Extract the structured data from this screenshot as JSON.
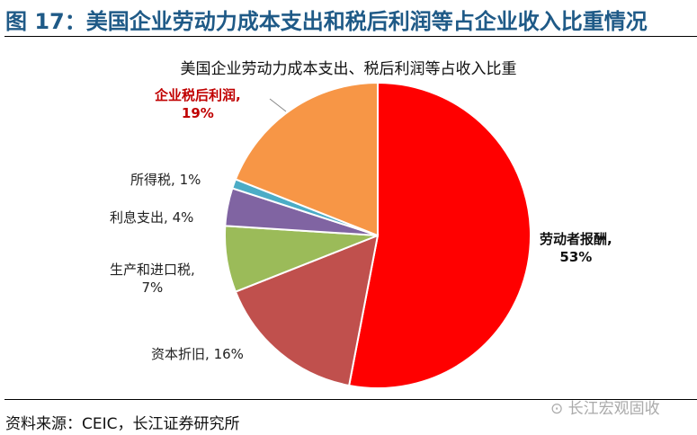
{
  "figure_title": "图 17：美国企业劳动力成本支出和税后利润等占企业收入比重情况",
  "source": "资料来源：CEIC，长江证券研究所",
  "watermark": "长江宏观固收",
  "chart_data": {
    "type": "pie",
    "title": "美国企业劳动力成本支出、税后利润等占收入比重",
    "start": "12 o'clock, clockwise",
    "slices": [
      {
        "name": "劳动者报酬",
        "value": 53,
        "label": "53%",
        "color": "#FF0000"
      },
      {
        "name": "资本折旧",
        "value": 16,
        "label": "16%",
        "color": "#C0504D"
      },
      {
        "name": "生产和进口税",
        "value": 7,
        "label": "7%",
        "color": "#9BBB59"
      },
      {
        "name": "利息支出",
        "value": 4,
        "label": "4%",
        "color": "#8064A2"
      },
      {
        "name": "所得税",
        "value": 1,
        "label": "1%",
        "color": "#4BACC6"
      },
      {
        "name": "企业税后利润",
        "value": 19,
        "label": "19%",
        "color": "#F79646"
      }
    ],
    "legend": "none"
  }
}
